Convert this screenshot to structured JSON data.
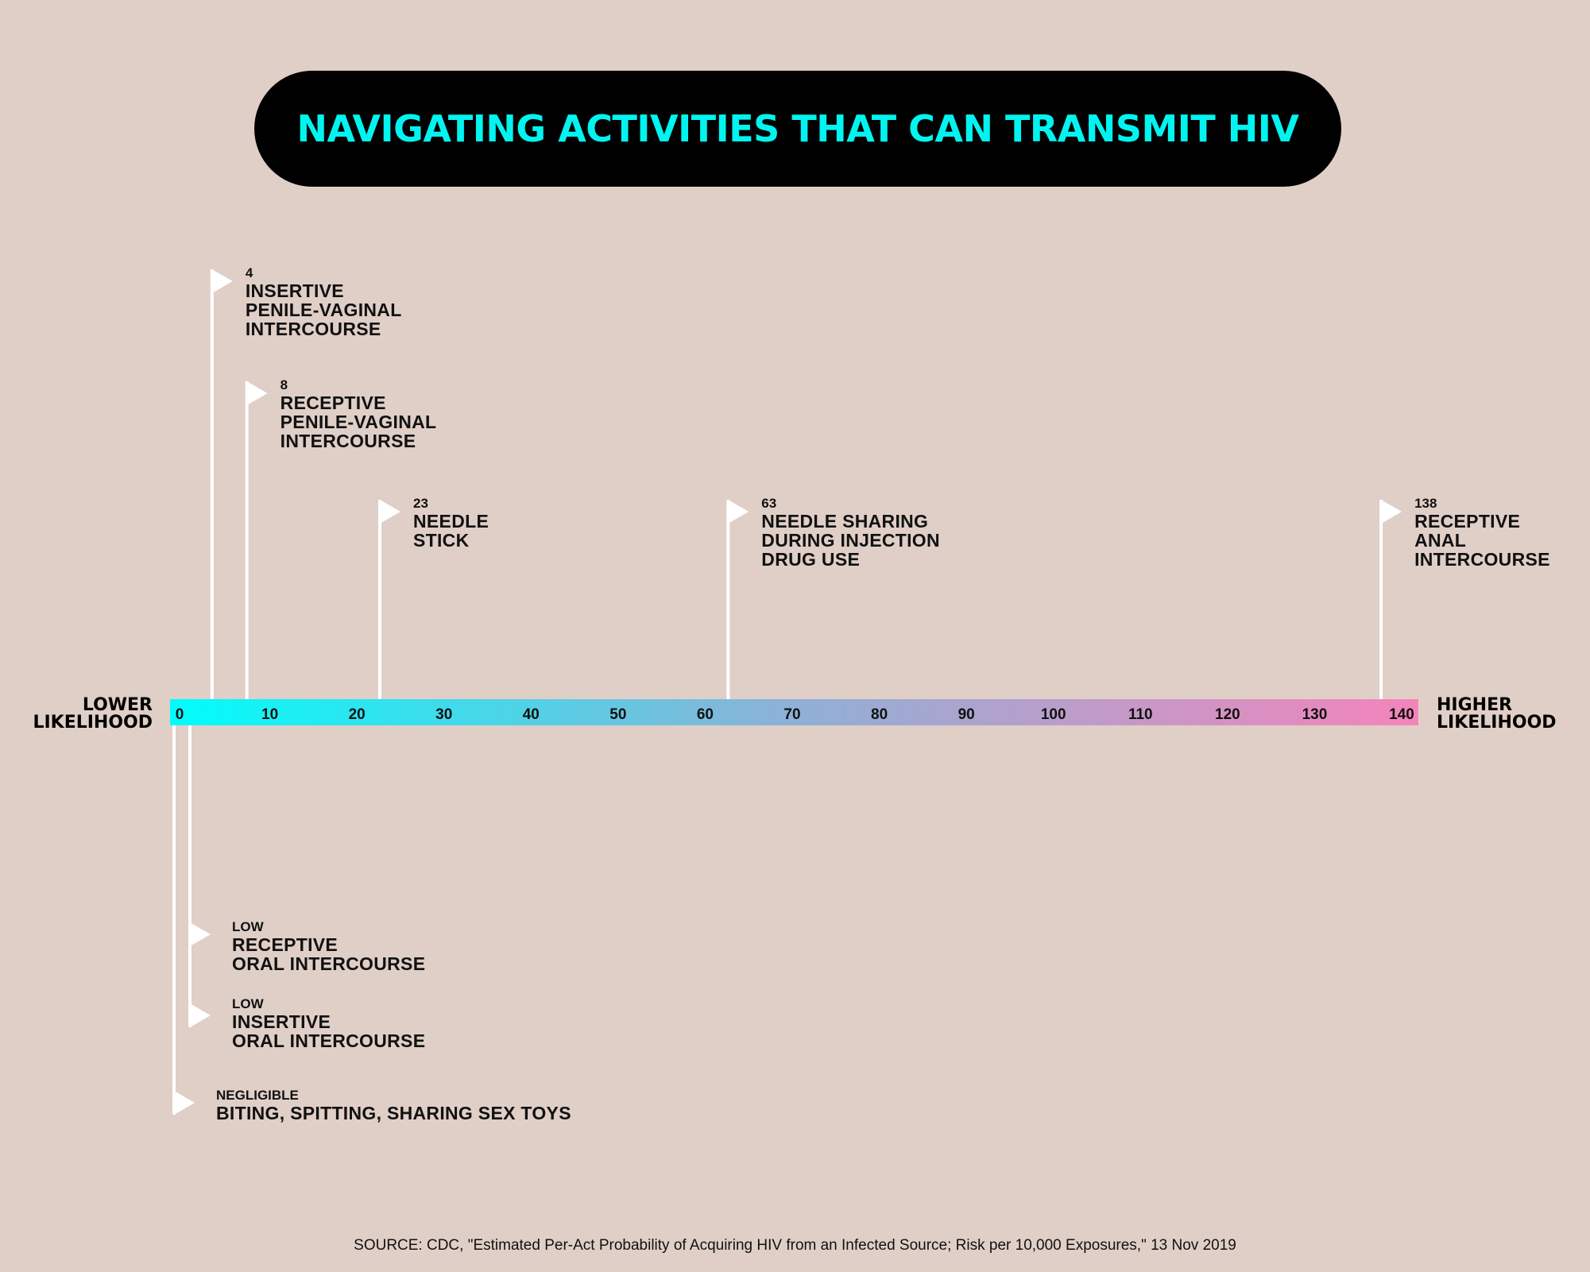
{
  "header": {
    "title": "NAVIGATING ACTIVITIES THAT CAN TRANSMIT HIV"
  },
  "scale": {
    "lower_label": "LOWER LIKELIHOOD",
    "higher_label": "HIGHER LIKELIHOOD"
  },
  "chart_data": {
    "type": "scatter",
    "title": "NAVIGATING ACTIVITIES THAT CAN TRANSMIT HIV",
    "xlim": [
      0,
      140
    ],
    "ticks": [
      0,
      10,
      20,
      30,
      40,
      50,
      60,
      70,
      80,
      90,
      100,
      110,
      120,
      130,
      140
    ],
    "gradient_colors": [
      "#00fdfb",
      "#f484bb"
    ],
    "points_above": [
      {
        "value": 4,
        "label": "4",
        "name": "INSERTIVE\nPENILE-VAGINAL\nINTERCOURSE"
      },
      {
        "value": 8,
        "label": "8",
        "name": "RECEPTIVE\nPENILE-VAGINAL\nINTERCOURSE"
      },
      {
        "value": 23,
        "label": "23",
        "name": "NEEDLE\nSTICK"
      },
      {
        "value": 63,
        "label": "63",
        "name": "NEEDLE SHARING\nDURING INJECTION\nDRUG USE"
      },
      {
        "value": 138,
        "label": "138",
        "name": "RECEPTIVE\nANAL\nINTERCOURSE"
      }
    ],
    "points_below": [
      {
        "value": "low",
        "label": "LOW",
        "name": "RECEPTIVE\nORAL INTERCOURSE"
      },
      {
        "value": "low",
        "label": "LOW",
        "name": "INSERTIVE\nORAL INTERCOURSE"
      },
      {
        "value": "negligible",
        "label": "NEGLIGIBLE",
        "name": "BITING, SPITTING, SHARING SEX TOYS"
      }
    ]
  },
  "footer": {
    "source": "SOURCE: CDC, \"Estimated Per-Act Probability of Acquiring HIV from an Infected Source; Risk per 10,000 Exposures,\" 13 Nov 2019"
  }
}
